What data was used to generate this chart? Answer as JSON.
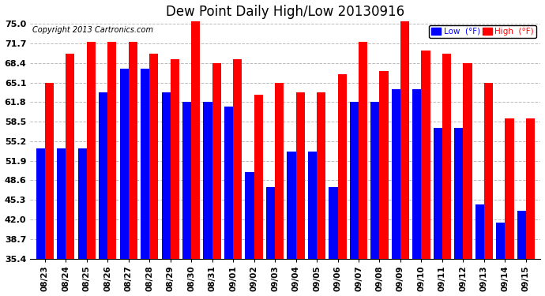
{
  "title": "Dew Point Daily High/Low 20130916",
  "copyright": "Copyright 2013 Cartronics.com",
  "dates": [
    "08/23",
    "08/24",
    "08/25",
    "08/26",
    "08/27",
    "08/28",
    "08/29",
    "08/30",
    "08/31",
    "09/01",
    "09/02",
    "09/03",
    "09/04",
    "09/05",
    "09/06",
    "09/07",
    "09/08",
    "09/09",
    "09/10",
    "09/11",
    "09/12",
    "09/13",
    "09/14",
    "09/15"
  ],
  "high": [
    65.0,
    70.0,
    72.0,
    72.0,
    72.0,
    70.0,
    69.0,
    76.0,
    68.4,
    69.0,
    63.0,
    65.0,
    63.5,
    63.5,
    66.5,
    72.0,
    67.0,
    76.0,
    70.5,
    70.0,
    68.4,
    65.1,
    59.0,
    59.0
  ],
  "low": [
    54.0,
    54.0,
    54.0,
    63.5,
    67.5,
    67.5,
    63.5,
    61.8,
    61.8,
    61.0,
    50.0,
    47.5,
    53.5,
    53.5,
    47.5,
    61.8,
    61.8,
    64.0,
    64.0,
    57.5,
    57.5,
    44.5,
    41.5,
    43.5
  ],
  "high_color": "#FF0000",
  "low_color": "#0000FF",
  "bg_color": "#FFFFFF",
  "grid_color": "#BBBBBB",
  "ylim_min": 35.4,
  "ylim_max": 75.0,
  "yticks": [
    35.4,
    38.7,
    42.0,
    45.3,
    48.6,
    51.9,
    55.2,
    58.5,
    61.8,
    65.1,
    68.4,
    71.7,
    75.0
  ],
  "legend_low_label": "Low  (°F)",
  "legend_high_label": "High  (°F)",
  "figwidth": 6.9,
  "figheight": 3.75,
  "dpi": 100
}
